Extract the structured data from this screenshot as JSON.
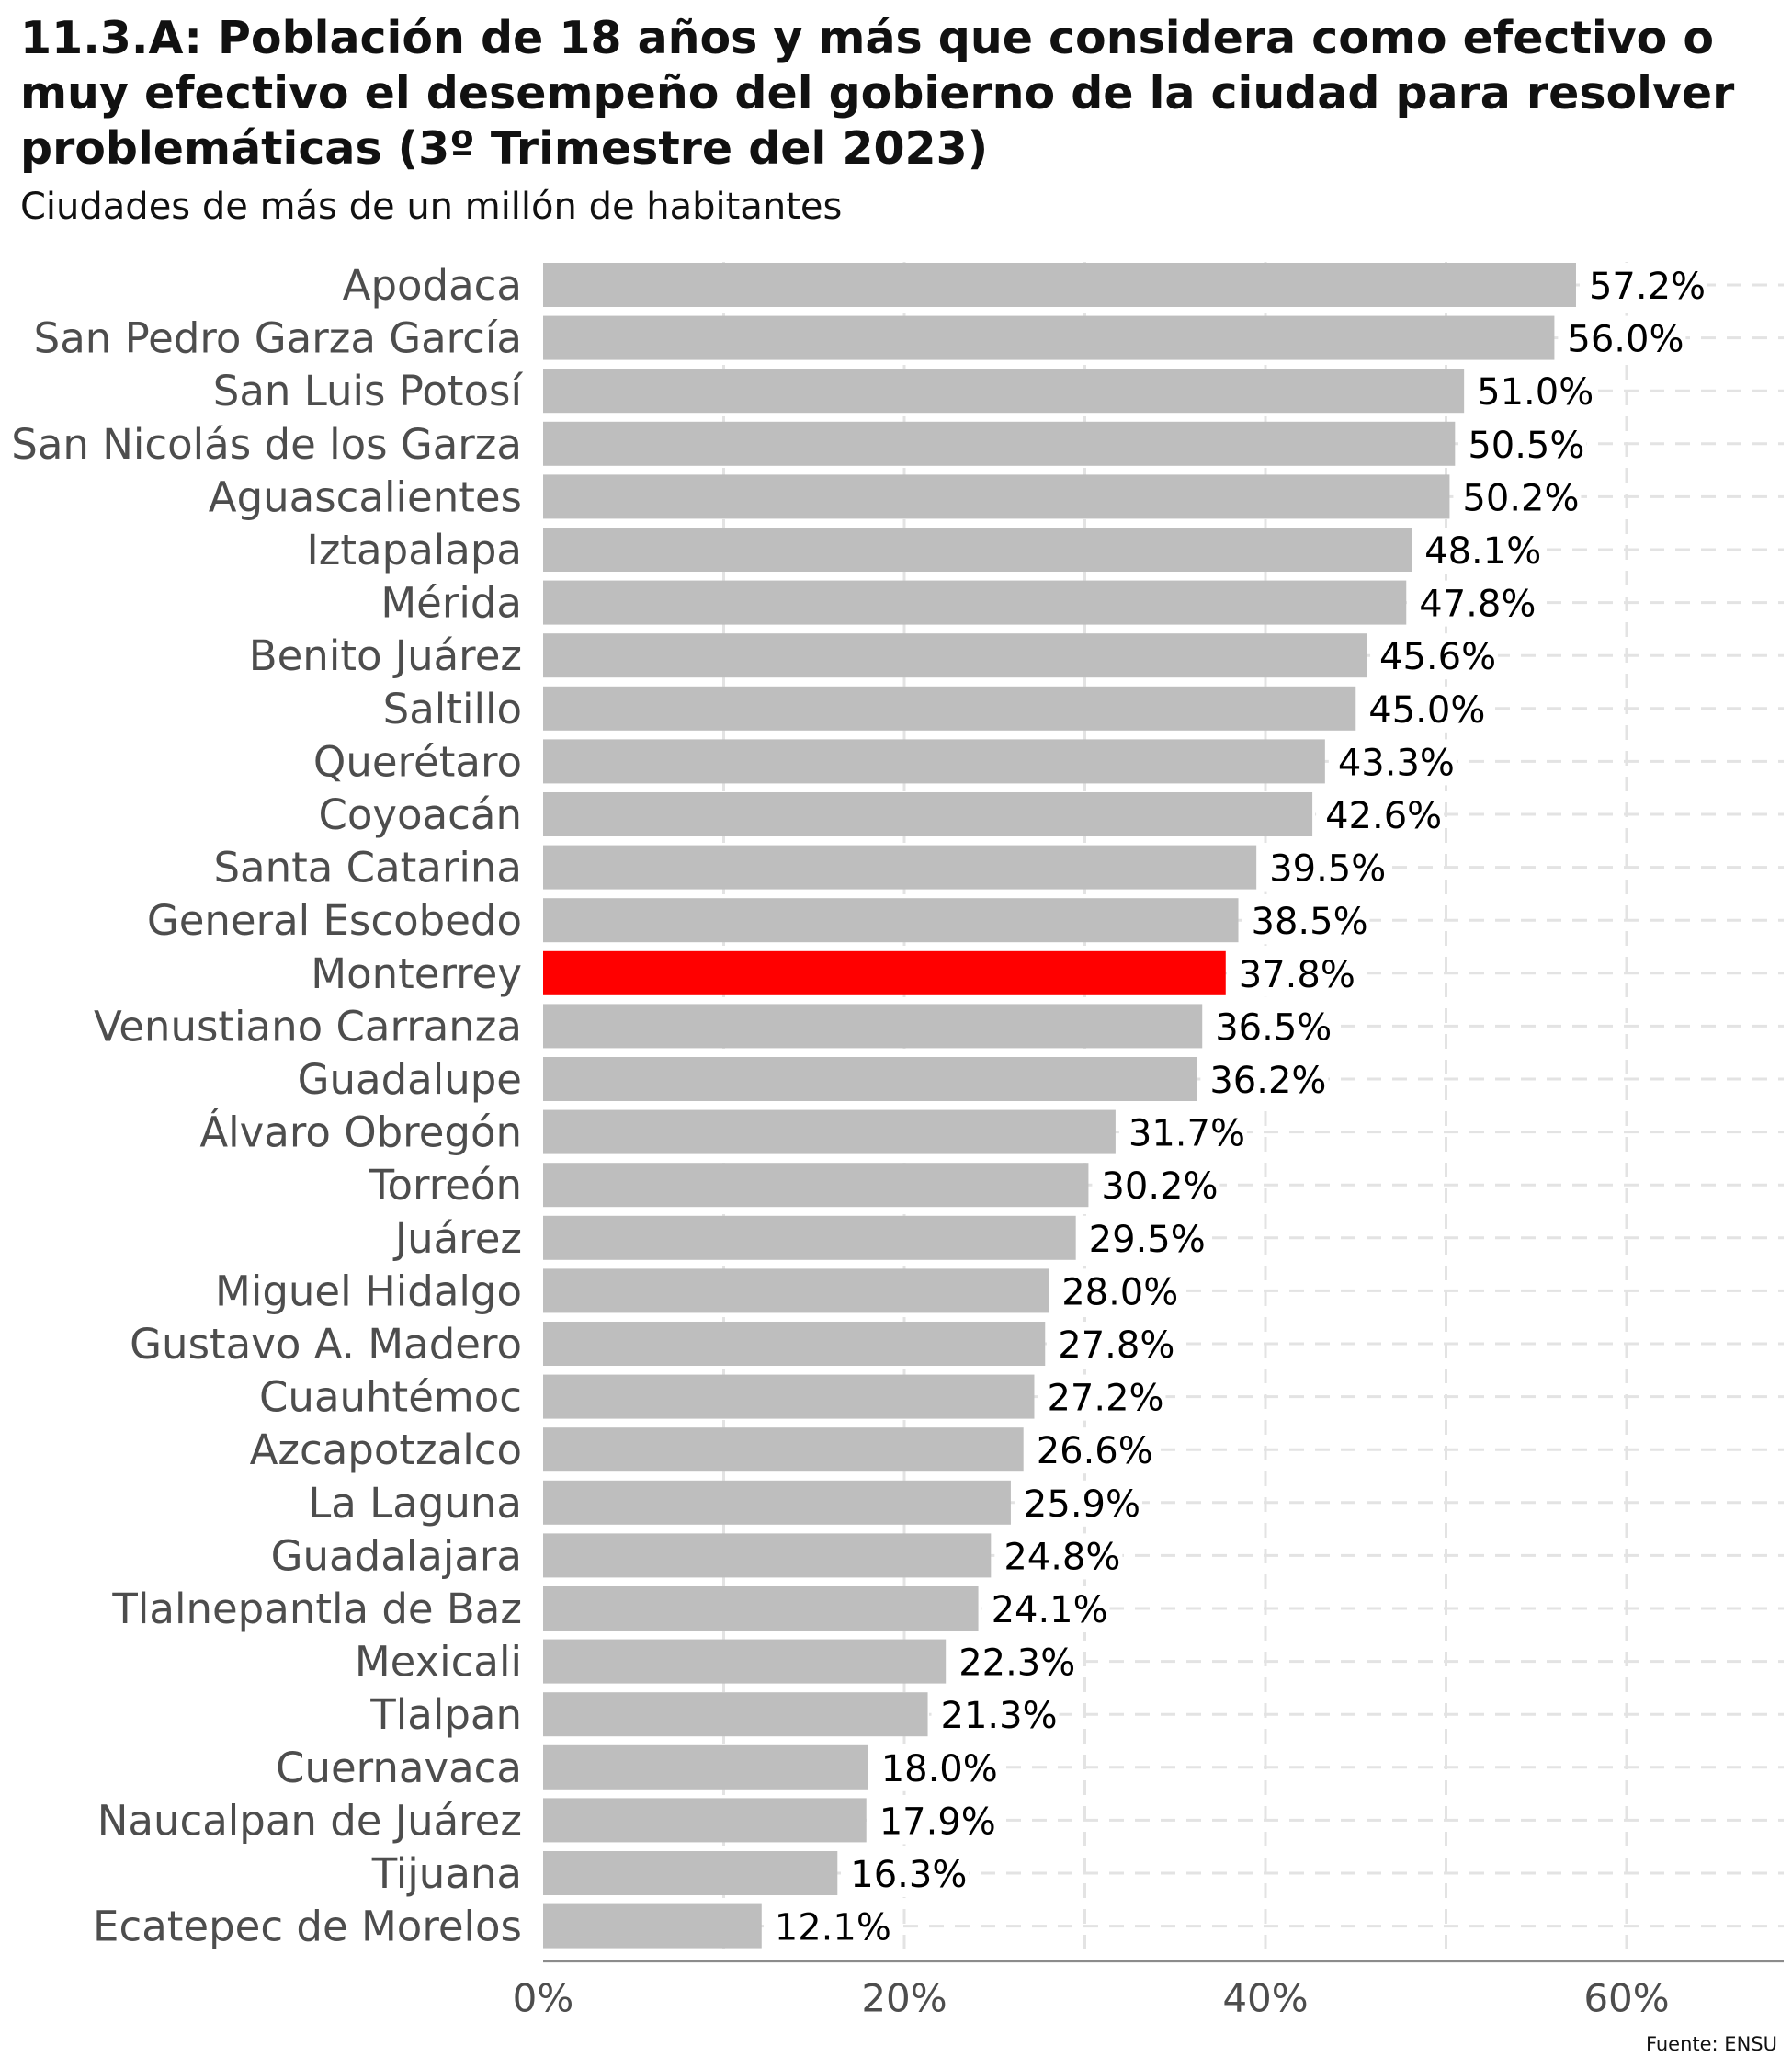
{
  "chart_data": {
    "type": "bar",
    "orientation": "horizontal",
    "title": "11.3.A: Población de 18 años y más que considera como efectivo o muy efectivo el desempeño del gobierno de la ciudad para resolver problemáticas (3º Trimestre del 2023)",
    "subtitle": "Ciudades de más de un millón de habitantes",
    "xlabel": "",
    "ylabel": "",
    "xlim": [
      0,
      68
    ],
    "x_ticks": [
      0,
      20,
      40,
      60
    ],
    "x_tick_labels": [
      "0%",
      "20%",
      "40%",
      "60%"
    ],
    "grid": true,
    "grid_style": "dashed",
    "bar_color": "#bebebe",
    "highlight_color": "#ff0000",
    "highlight_category": "Monterrey",
    "categories": [
      "Apodaca",
      "San Pedro Garza García",
      "San Luis Potosí",
      "San Nicolás de los Garza",
      "Aguascalientes",
      "Iztapalapa",
      "Mérida",
      "Benito Juárez",
      "Saltillo",
      "Querétaro",
      "Coyoacán",
      "Santa Catarina",
      "General Escobedo",
      "Monterrey",
      "Venustiano Carranza",
      "Guadalupe",
      "Álvaro Obregón",
      "Torreón",
      "Juárez",
      "Miguel Hidalgo",
      "Gustavo A. Madero",
      "Cuauhtémoc",
      "Azcapotzalco",
      "La Laguna",
      "Guadalajara",
      "Tlalnepantla de Baz",
      "Mexicali",
      "Tlalpan",
      "Cuernavaca",
      "Naucalpan de Juárez",
      "Tijuana",
      "Ecatepec de Morelos"
    ],
    "values": [
      57.2,
      56.0,
      51.0,
      50.5,
      50.2,
      48.1,
      47.8,
      45.6,
      45.0,
      43.3,
      42.6,
      39.5,
      38.5,
      37.8,
      36.5,
      36.2,
      31.7,
      30.2,
      29.5,
      28.0,
      27.8,
      27.2,
      26.6,
      25.9,
      24.8,
      24.1,
      22.3,
      21.3,
      18.0,
      17.9,
      16.3,
      12.1
    ],
    "value_labels": [
      "57.2%",
      "56.0%",
      "51.0%",
      "50.5%",
      "50.2%",
      "48.1%",
      "47.8%",
      "45.6%",
      "45.0%",
      "43.3%",
      "42.6%",
      "39.5%",
      "38.5%",
      "37.8%",
      "36.5%",
      "36.2%",
      "31.7%",
      "30.2%",
      "29.5%",
      "28.0%",
      "27.8%",
      "27.2%",
      "26.6%",
      "25.9%",
      "24.8%",
      "24.1%",
      "22.3%",
      "21.3%",
      "18.0%",
      "17.9%",
      "16.3%",
      "12.1%"
    ],
    "source": "Fuente: ENSU"
  }
}
